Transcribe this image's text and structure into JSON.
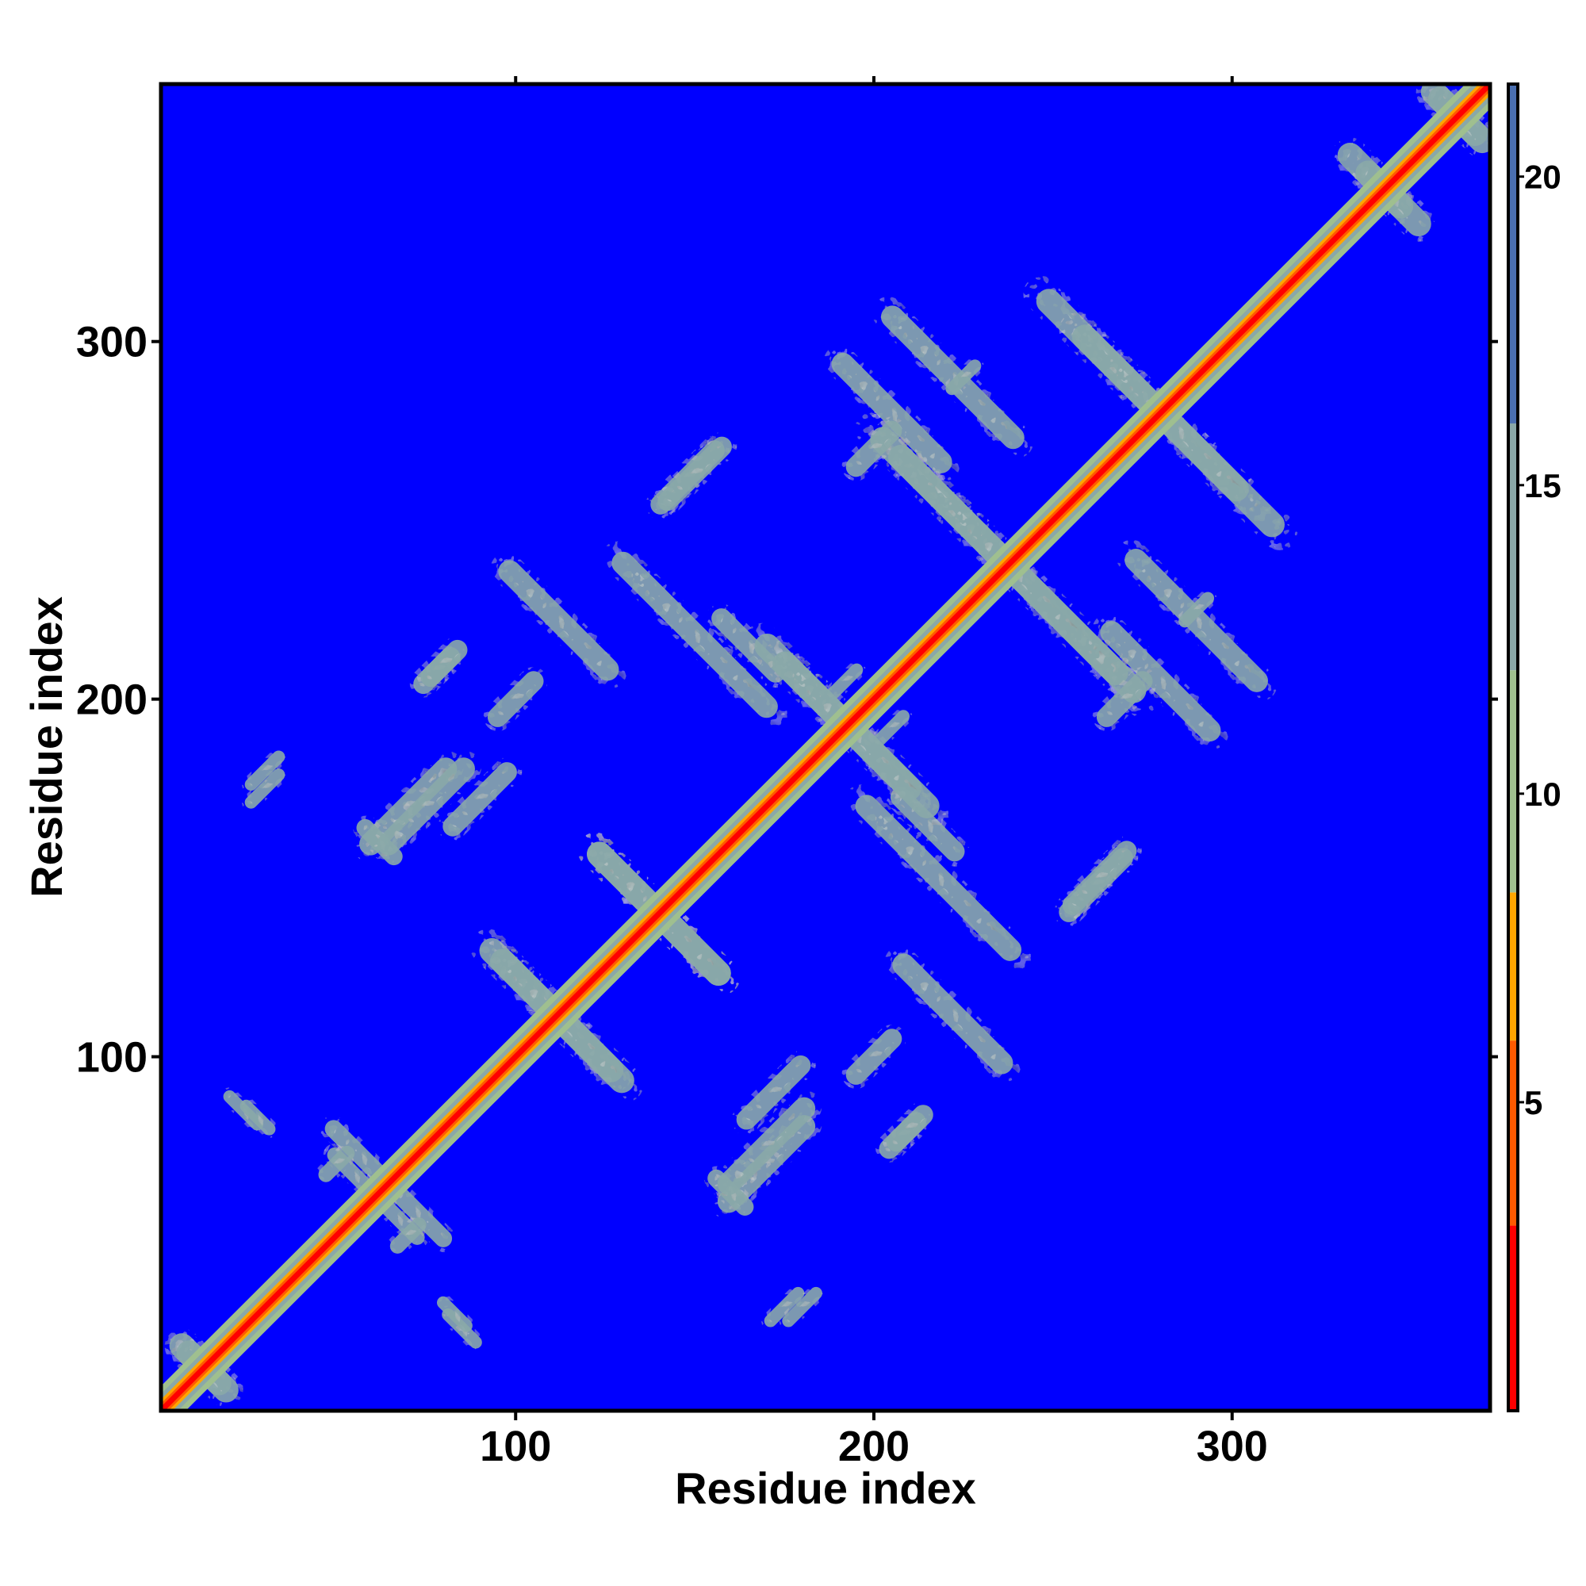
{
  "chart_data": {
    "type": "heatmap",
    "title": "",
    "xlabel": "Residue index",
    "ylabel": "Residue index",
    "xlim": [
      1,
      372
    ],
    "ylim": [
      1,
      372
    ],
    "x_ticks": [
      100,
      200,
      300
    ],
    "y_ticks": [
      100,
      200,
      300
    ],
    "x_tick_labels": [
      "100",
      "200",
      "300"
    ],
    "y_tick_labels": [
      "100",
      "200",
      "300"
    ],
    "colorbar": {
      "range": [
        0,
        21.5
      ],
      "ticks": [
        5,
        10,
        15,
        20
      ],
      "tick_labels": [
        "5",
        "10",
        "15",
        "20"
      ],
      "colors": [
        {
          "from": 0,
          "to": 3,
          "color": "#ff0000"
        },
        {
          "from": 3,
          "to": 6,
          "color": "#ff5a00"
        },
        {
          "from": 6,
          "to": 8.4,
          "color": "#ffa500"
        },
        {
          "from": 8.4,
          "to": 12,
          "color": "#9fbf8f"
        },
        {
          "from": 12,
          "to": 16,
          "color": "#8aa8a8"
        },
        {
          "from": 16,
          "to": 21.5,
          "color": "#4a6fb0"
        }
      ],
      "background_color": "#0000ff"
    },
    "diagonal": {
      "from": 1,
      "to": 372
    },
    "contact_features": [
      {
        "center": [
          57,
          72
        ],
        "orientation": "antidiagonal",
        "length": 30,
        "width": 7
      },
      {
        "center": [
          67,
          55
        ],
        "orientation": "antidiagonal",
        "length": 22,
        "width": 6
      },
      {
        "center": [
          85,
          24
        ],
        "orientation": "antidiagonal",
        "length": 16,
        "width": 5
      },
      {
        "center": [
          28,
          83
        ],
        "orientation": "antidiagonal",
        "length": 14,
        "width": 5
      },
      {
        "center": [
          110,
          113
        ],
        "orientation": "antidiagonal",
        "length": 60,
        "width": 10
      },
      {
        "center": [
          70,
          170
        ],
        "orientation": "parallel",
        "length": 40,
        "width": 9
      },
      {
        "center": [
          62,
          160
        ],
        "orientation": "antidiagonal",
        "length": 18,
        "width": 7
      },
      {
        "center": [
          170,
          75
        ],
        "orientation": "parallel",
        "length": 40,
        "width": 9
      },
      {
        "center": [
          140,
          140
        ],
        "orientation": "antidiagonal",
        "length": 60,
        "width": 10
      },
      {
        "center": [
          112,
          222
        ],
        "orientation": "antidiagonal",
        "length": 50,
        "width": 9
      },
      {
        "center": [
          165,
          215
        ],
        "orientation": "antidiagonal",
        "length": 30,
        "width": 8
      },
      {
        "center": [
          190,
          195
        ],
        "orientation": "antidiagonal",
        "length": 70,
        "width": 10
      },
      {
        "center": [
          218,
          150
        ],
        "orientation": "antidiagonal",
        "length": 70,
        "width": 9
      },
      {
        "center": [
          205,
          280
        ],
        "orientation": "antidiagonal",
        "length": 50,
        "width": 9
      },
      {
        "center": [
          235,
          240
        ],
        "orientation": "antidiagonal",
        "length": 110,
        "width": 10
      },
      {
        "center": [
          275,
          285
        ],
        "orientation": "antidiagonal",
        "length": 90,
        "width": 10
      },
      {
        "center": [
          290,
          222
        ],
        "orientation": "antidiagonal",
        "length": 60,
        "width": 9
      },
      {
        "center": [
          262,
          148
        ],
        "orientation": "parallel",
        "length": 30,
        "width": 8
      },
      {
        "center": [
          150,
          263
        ],
        "orientation": "parallel",
        "length": 30,
        "width": 8
      },
      {
        "center": [
          78,
          208
        ],
        "orientation": "parallel",
        "length": 18,
        "width": 8
      },
      {
        "center": [
          210,
          80
        ],
        "orientation": "parallel",
        "length": 18,
        "width": 8
      },
      {
        "center": [
          172,
          90
        ],
        "orientation": "parallel",
        "length": 30,
        "width": 8
      },
      {
        "center": [
          100,
          200
        ],
        "orientation": "parallel",
        "length": 22,
        "width": 8
      },
      {
        "center": [
          270,
          200
        ],
        "orientation": "parallel",
        "length": 22,
        "width": 8
      },
      {
        "center": [
          70,
          50
        ],
        "orientation": "parallel",
        "length": 14,
        "width": 6
      },
      {
        "center": [
          30,
          175
        ],
        "orientation": "parallel",
        "length": 16,
        "width": 5
      },
      {
        "center": [
          180,
          30
        ],
        "orientation": "parallel",
        "length": 16,
        "width": 5
      },
      {
        "center": [
          290,
          225
        ],
        "orientation": "parallel",
        "length": 14,
        "width": 5
      },
      {
        "center": [
          192,
          205
        ],
        "orientation": "parallel",
        "length": 14,
        "width": 5
      },
      {
        "center": [
          340,
          345
        ],
        "orientation": "antidiagonal",
        "length": 30,
        "width": 10
      },
      {
        "center": [
          362,
          364
        ],
        "orientation": "antidiagonal",
        "length": 26,
        "width": 10
      },
      {
        "center": [
          12,
          14
        ],
        "orientation": "antidiagonal",
        "length": 24,
        "width": 10
      }
    ],
    "grid": false,
    "legend": "colorbar-right"
  }
}
